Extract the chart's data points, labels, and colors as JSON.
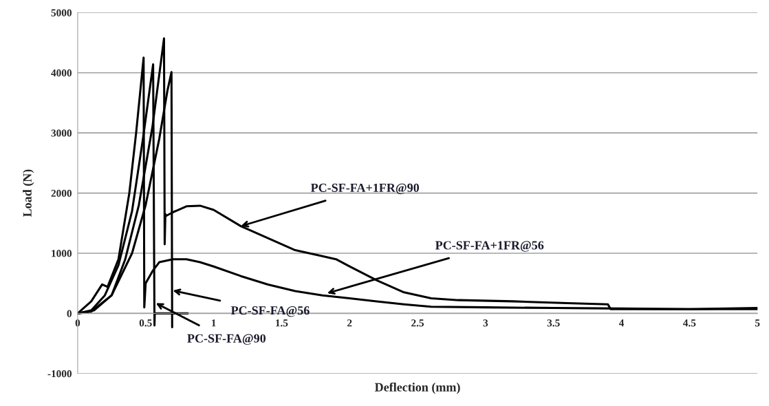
{
  "chart_data": {
    "type": "line",
    "xlabel": "Deflection (mm)",
    "ylabel": "Load (N)",
    "xlim": [
      0,
      5
    ],
    "ylim": [
      -1000,
      5000
    ],
    "xticks": [
      0,
      0.5,
      1,
      1.5,
      2,
      2.5,
      3,
      3.5,
      4,
      4.5,
      5
    ],
    "yticks": [
      -1000,
      0,
      1000,
      2000,
      3000,
      4000,
      5000
    ],
    "grid": "y",
    "legend": false,
    "marker": "none",
    "line_style": "solid",
    "series": [
      {
        "color": "#000000",
        "x": [
          0,
          0.1,
          0.18,
          0.22,
          0.3,
          0.38,
          0.43,
          0.485,
          0.49,
          0.5,
          0.55,
          0.6,
          0.7,
          0.8,
          0.9,
          1.0,
          1.2,
          1.4,
          1.6,
          1.8,
          2.0,
          2.2,
          2.4,
          2.6,
          3.0,
          3.5,
          4.0,
          4.5,
          5.0
        ],
        "values": [
          0,
          200,
          480,
          440,
          900,
          2000,
          3000,
          4250,
          100,
          500,
          700,
          850,
          900,
          900,
          850,
          780,
          620,
          480,
          370,
          300,
          250,
          200,
          150,
          110,
          100,
          90,
          80,
          70,
          70
        ]
      },
      {
        "color": "#000000",
        "x": [
          0,
          0.1,
          0.25,
          0.35,
          0.45,
          0.55,
          0.635,
          0.64,
          0.645,
          0.65,
          0.7,
          0.8,
          0.9,
          1.0,
          1.2,
          1.4,
          1.6,
          1.8,
          1.9,
          2.0,
          2.2,
          2.4,
          2.6,
          2.8,
          3.2,
          3.6,
          3.9,
          3.92,
          4.5,
          5.0
        ],
        "values": [
          0,
          30,
          300,
          900,
          1800,
          3100,
          4570,
          1150,
          1650,
          1620,
          1680,
          1780,
          1790,
          1720,
          1450,
          1250,
          1050,
          950,
          900,
          780,
          550,
          350,
          250,
          220,
          200,
          170,
          150,
          70,
          70,
          90
        ]
      },
      {
        "color": "#000000",
        "x": [
          0,
          0.1,
          0.2,
          0.3,
          0.4,
          0.48,
          0.555,
          0.565,
          0.567,
          0.81
        ],
        "values": [
          0,
          50,
          300,
          800,
          1700,
          2900,
          4140,
          -200,
          0,
          0
        ]
      },
      {
        "color": "#000000",
        "x": [
          0,
          0.12,
          0.25,
          0.4,
          0.5,
          0.6,
          0.66,
          0.69,
          0.695
        ],
        "values": [
          0,
          50,
          300,
          1000,
          1800,
          2900,
          3700,
          4010,
          -230
        ]
      }
    ],
    "annotations": [
      {
        "text": "PC-SF-FA+1FR@90",
        "x": 1.2,
        "y": 1450
      },
      {
        "text": "PC-SF-FA+1FR@56",
        "x": 1.835,
        "y": 335
      },
      {
        "text": "PC-SF-FA@56",
        "x": 0.7,
        "y": 380
      },
      {
        "text": "PC-SF-FA@90",
        "x": 0.575,
        "y": 170
      }
    ]
  }
}
